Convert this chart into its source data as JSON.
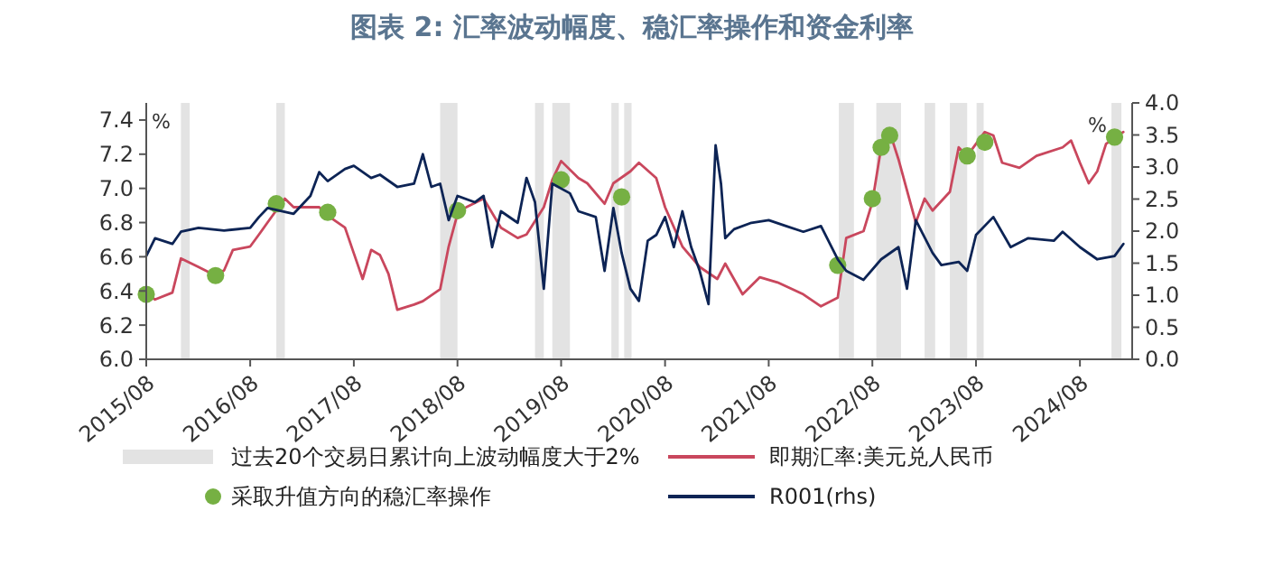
{
  "chart_data": {
    "type": "line",
    "title": "图表 2:  汇率波动幅度、稳汇率操作和资金利率",
    "ylabel": "%",
    "y2label": "%",
    "xlim": [
      "2015-08",
      "2025-02"
    ],
    "xticks": [
      {
        "value": "2015-08",
        "label": "2015/08"
      },
      {
        "value": "2016-08",
        "label": "2016/08"
      },
      {
        "value": "2017-08",
        "label": "2017/08"
      },
      {
        "value": "2018-08",
        "label": "2018/08"
      },
      {
        "value": "2019-08",
        "label": "2019/08"
      },
      {
        "value": "2020-08",
        "label": "2020/08"
      },
      {
        "value": "2021-08",
        "label": "2021/08"
      },
      {
        "value": "2022-08",
        "label": "2022/08"
      },
      {
        "value": "2023-08",
        "label": "2023/08"
      },
      {
        "value": "2024-08",
        "label": "2024/08"
      }
    ],
    "ylim": [
      6,
      7.5
    ],
    "yticks": [
      {
        "value": 6,
        "label": "6.0"
      },
      6.2,
      6.4,
      6.6,
      6.8,
      {
        "value": 7,
        "label": "7.0"
      },
      7.2,
      7.4
    ],
    "y2lim": [
      0,
      4
    ],
    "y2ticks": [
      {
        "value": 0,
        "label": "0.0"
      },
      0.5,
      {
        "value": 1,
        "label": "1.0"
      },
      1.5,
      {
        "value": 2,
        "label": "2.0"
      },
      2.5,
      {
        "value": 3,
        "label": "3.0"
      },
      3.5,
      {
        "value": 4,
        "label": "4.0"
      }
    ],
    "grid": false,
    "legend": "bottom",
    "bands": [
      {
        "axis": "x",
        "from": "2015-12",
        "to": "2016-01",
        "label": "过去20个交易日累计向上波动幅度大于2%",
        "color": "#e3e3e3"
      },
      {
        "axis": "x",
        "from": "2016-11",
        "to": "2016-12",
        "color": "#e3e3e3"
      },
      {
        "axis": "x",
        "from": "2018-06",
        "to": "2018-08",
        "color": "#e3e3e3"
      },
      {
        "axis": "x",
        "from": "2019-05",
        "to": "2019-06",
        "color": "#e3e3e3"
      },
      {
        "axis": "x",
        "from": "2019-07",
        "to": "2019-09",
        "color": "#e3e3e3"
      },
      {
        "axis": "x",
        "from": "2020-01-25",
        "to": "2020-02-20",
        "color": "#e3e3e3"
      },
      {
        "axis": "x",
        "from": "2020-03-10",
        "to": "2020-04-05",
        "color": "#e3e3e3"
      },
      {
        "axis": "x",
        "from": "2022-04-05",
        "to": "2022-05-28",
        "color": "#e3e3e3"
      },
      {
        "axis": "x",
        "from": "2022-08-15",
        "to": "2022-11-10",
        "color": "#e3e3e3"
      },
      {
        "axis": "x",
        "from": "2023-02-01",
        "to": "2023-03-10",
        "color": "#e3e3e3"
      },
      {
        "axis": "x",
        "from": "2023-05-01",
        "to": "2023-07-01",
        "color": "#e3e3e3"
      },
      {
        "axis": "x",
        "from": "2023-08-03",
        "to": "2023-08-28",
        "color": "#e3e3e3"
      },
      {
        "axis": "x",
        "from": "2024-11-20",
        "to": "2024-12-25",
        "color": "#e3e3e3"
      }
    ],
    "series": [
      {
        "name": "即期汇率:美元兑人民币",
        "type": "line",
        "color": "#c9475d",
        "line_style": "solid",
        "x": [
          "2015-08",
          "2015-09",
          "2015-11",
          "2015-12",
          "2016-02",
          "2016-04",
          "2016-05",
          "2016-06",
          "2016-08",
          "2016-09",
          "2016-10",
          "2016-12",
          "2017-01",
          "2017-04",
          "2017-05",
          "2017-07",
          "2017-08",
          "2017-09",
          "2017-10",
          "2017-11",
          "2017-12",
          "2018-01",
          "2018-03",
          "2018-04",
          "2018-06",
          "2018-07",
          "2018-08",
          "2018-09",
          "2018-11",
          "2019-01",
          "2019-03",
          "2019-04",
          "2019-06",
          "2019-07",
          "2019-08",
          "2019-10",
          "2019-11",
          "2020-01",
          "2020-02",
          "2020-04",
          "2020-05",
          "2020-07",
          "2020-08",
          "2020-10",
          "2020-12",
          "2021-02",
          "2021-03",
          "2021-05",
          "2021-07",
          "2021-09",
          "2021-12",
          "2022-02",
          "2022-04",
          "2022-05",
          "2022-07",
          "2022-08",
          "2022-09",
          "2022-10",
          "2022-11",
          "2023-01",
          "2023-02",
          "2023-03",
          "2023-05",
          "2023-06",
          "2023-07",
          "2023-09",
          "2023-10",
          "2023-11",
          "2024-01",
          "2024-03",
          "2024-06",
          "2024-07",
          "2024-08",
          "2024-09",
          "2024-10",
          "2024-11",
          "2025-01"
        ],
        "values": [
          6.38,
          6.35,
          6.39,
          6.59,
          6.54,
          6.49,
          6.52,
          6.64,
          6.66,
          6.73,
          6.8,
          6.94,
          6.89,
          6.89,
          6.84,
          6.77,
          6.62,
          6.47,
          6.64,
          6.61,
          6.5,
          6.29,
          6.32,
          6.34,
          6.41,
          6.66,
          6.85,
          6.89,
          6.94,
          6.77,
          6.71,
          6.73,
          6.89,
          7.05,
          7.16,
          7.06,
          7.03,
          6.91,
          7.03,
          7.1,
          7.15,
          7.06,
          6.89,
          6.66,
          6.54,
          6.47,
          6.56,
          6.38,
          6.48,
          6.45,
          6.38,
          6.31,
          6.36,
          6.71,
          6.75,
          6.92,
          7.24,
          7.33,
          7.17,
          6.8,
          6.94,
          6.87,
          6.98,
          7.24,
          7.19,
          7.33,
          7.31,
          7.15,
          7.12,
          7.19,
          7.24,
          7.28,
          7.15,
          7.03,
          7.1,
          7.26,
          7.33
        ]
      },
      {
        "name": "采取升值方向的稳汇率操作",
        "type": "scatter",
        "color": "#76b043",
        "marker": "circle",
        "x": [
          "2015-08",
          "2016-04",
          "2016-11",
          "2017-05",
          "2018-08",
          "2019-08",
          "2020-03",
          "2022-04",
          "2022-08",
          "2022-09",
          "2022-10",
          "2023-07",
          "2023-09",
          "2024-12"
        ],
        "values": [
          6.38,
          6.49,
          6.91,
          6.86,
          6.87,
          7.05,
          6.95,
          6.55,
          6.94,
          7.24,
          7.31,
          7.19,
          7.27,
          7.3
        ]
      },
      {
        "name": "R001(rhs)",
        "type": "line",
        "axis": "y2",
        "color": "#0d2455",
        "line_style": "solid",
        "x": [
          "2015-08",
          "2015-09",
          "2015-11",
          "2015-12",
          "2016-02",
          "2016-05",
          "2016-08",
          "2016-09",
          "2016-10",
          "2017-01",
          "2017-03",
          "2017-04",
          "2017-05",
          "2017-07",
          "2017-08",
          "2017-10",
          "2017-11",
          "2018-01",
          "2018-03",
          "2018-04",
          "2018-05",
          "2018-06",
          "2018-07",
          "2018-08",
          "2018-10",
          "2018-11",
          "2018-12",
          "2019-01",
          "2019-03",
          "2019-04",
          "2019-05",
          "2019-06",
          "2019-07",
          "2019-09",
          "2019-10",
          "2019-12",
          "2020-01",
          "2020-02",
          "2020-03",
          "2020-04",
          "2020-05",
          "2020-06",
          "2020-07",
          "2020-08",
          "2020-09",
          "2020-10",
          "2020-11",
          "2020-12",
          "2021-01-01",
          "2021-01-26",
          "2021-02-14",
          "2021-03",
          "2021-04",
          "2021-06",
          "2021-08",
          "2021-10",
          "2021-12",
          "2022-02",
          "2022-04",
          "2022-05",
          "2022-07",
          "2022-09",
          "2022-11",
          "2022-12",
          "2023-01",
          "2023-03",
          "2023-04",
          "2023-06",
          "2023-07",
          "2023-08",
          "2023-10",
          "2023-12",
          "2024-02",
          "2024-05",
          "2024-06",
          "2024-08",
          "2024-10",
          "2024-12",
          "2025-01"
        ],
        "values": [
          1.61,
          1.89,
          1.8,
          1.99,
          2.05,
          2.01,
          2.05,
          2.22,
          2.36,
          2.27,
          2.55,
          2.92,
          2.78,
          2.97,
          3.02,
          2.83,
          2.88,
          2.69,
          2.74,
          3.2,
          2.69,
          2.74,
          2.17,
          2.55,
          2.45,
          2.55,
          1.75,
          2.31,
          2.13,
          2.83,
          2.45,
          1.1,
          2.74,
          2.59,
          2.31,
          2.22,
          1.38,
          2.36,
          1.66,
          1.1,
          0.91,
          1.85,
          1.94,
          2.22,
          1.75,
          2.31,
          1.75,
          1.38,
          0.86,
          3.34,
          2.74,
          1.89,
          2.03,
          2.13,
          2.17,
          2.08,
          1.99,
          2.08,
          1.56,
          1.38,
          1.24,
          1.56,
          1.75,
          1.1,
          2.17,
          1.66,
          1.47,
          1.52,
          1.38,
          1.94,
          2.22,
          1.75,
          1.89,
          1.85,
          1.99,
          1.75,
          1.56,
          1.61,
          1.8
        ]
      }
    ]
  }
}
